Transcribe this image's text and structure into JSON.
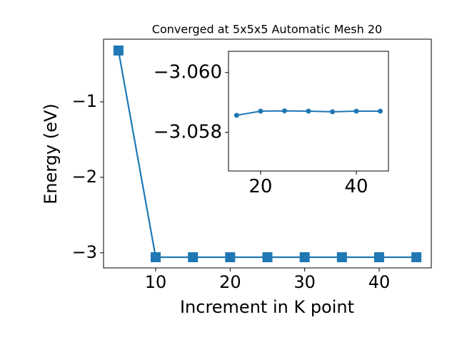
{
  "chart_data": [
    {
      "type": "line",
      "title": "Converged at 5x5x5 Automatic Mesh 20",
      "xlabel": "Increment in K point",
      "ylabel": "Energy (eV)",
      "x": [
        5,
        10,
        15,
        20,
        25,
        30,
        35,
        40,
        45
      ],
      "series": [
        {
          "color": "#1f77b4",
          "marker": "square",
          "values": [
            -0.32,
            -3.0586,
            -3.0587,
            -3.0587,
            -3.0587,
            -3.0587,
            -3.0587,
            -3.0587,
            -3.0587
          ]
        }
      ],
      "xlim": [
        3,
        47
      ],
      "xticks": [
        10,
        20,
        30,
        40
      ],
      "ylim": [
        -3.2,
        -0.17
      ],
      "yticks": [
        {
          "value": -3,
          "label": "−3"
        },
        {
          "value": -2,
          "label": "−2"
        },
        {
          "value": -1,
          "label": "−1"
        }
      ]
    },
    {
      "type": "line",
      "x": [
        15,
        20,
        25,
        30,
        35,
        40,
        45
      ],
      "series": [
        {
          "color": "#1f77b4",
          "marker": "circle",
          "values": [
            -3.05857,
            -3.05871,
            -3.05872,
            -3.05871,
            -3.05869,
            -3.05871,
            -3.05871
          ]
        }
      ],
      "xlim": [
        13.3,
        46.7
      ],
      "xticks": [
        20,
        40
      ],
      "ylim": [
        -3.05671,
        -3.06071
      ],
      "yticks": [
        {
          "value": -3.06,
          "label": "−3.060"
        },
        {
          "value": -3.058,
          "label": "−3.058"
        }
      ]
    }
  ]
}
